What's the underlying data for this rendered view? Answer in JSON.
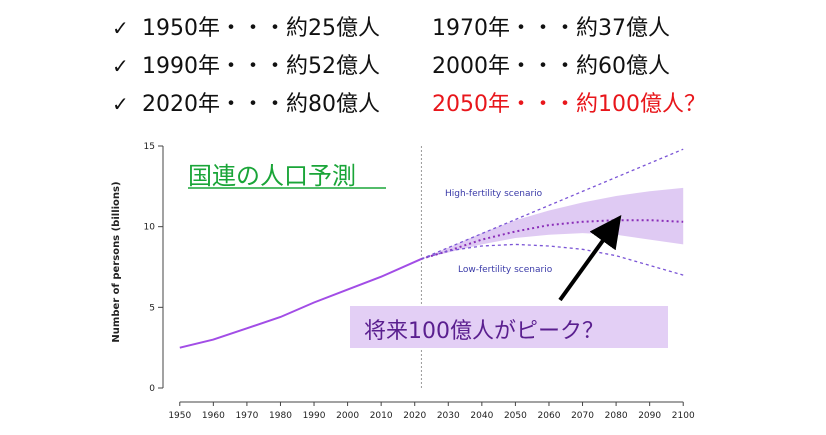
{
  "facts": [
    {
      "check": "✓",
      "text": "1950年・・・約25億人"
    },
    {
      "check": "",
      "text": "1970年・・・約37億人"
    },
    {
      "check": "✓",
      "text": "1990年・・・約52億人"
    },
    {
      "check": "",
      "text": "2000年・・・約60億人"
    },
    {
      "check": "✓",
      "text": "2020年・・・約80億人"
    },
    {
      "check": "",
      "text": "2050年・・・約100億人？"
    }
  ],
  "colors": {
    "projection": "#7b55d6",
    "median": "#8a2eb8",
    "band": "#dcc4f2",
    "history": "#a24de6",
    "highlight": "#e8161b",
    "title": "#1aa538"
  },
  "chart_data": {
    "type": "line",
    "title": "国連の人口予測",
    "ylabel": "Number of persons (billions)",
    "xlabel": "",
    "xlim": [
      1945,
      2105
    ],
    "ylim": [
      0,
      15
    ],
    "x_ticks": [
      1950,
      1960,
      1970,
      1980,
      1990,
      2000,
      2010,
      2020,
      2030,
      2040,
      2050,
      2060,
      2070,
      2080,
      2090,
      2100
    ],
    "y_ticks": [
      0,
      5,
      10,
      15
    ],
    "annotations": {
      "high": "High-fertility scenario",
      "low": "Low-fertility scenario",
      "callout": "将来100億人がピーク？"
    },
    "series": [
      {
        "x": [
          1950,
          1960,
          1970,
          1980,
          1990,
          2000,
          2010,
          2022
        ],
        "values": [
          2.5,
          3.0,
          3.7,
          4.4,
          5.3,
          6.1,
          6.9,
          8.0
        ]
      },
      {
        "x": [
          2022,
          2030,
          2040,
          2050,
          2060,
          2070,
          2080,
          2090,
          2100
        ],
        "values": [
          8.0,
          8.5,
          9.2,
          9.7,
          10.1,
          10.3,
          10.4,
          10.4,
          10.3
        ]
      },
      {
        "x": [
          2022,
          2100
        ],
        "values": [
          8.0,
          14.8
        ]
      },
      {
        "x": [
          2022,
          2030,
          2040,
          2050,
          2060,
          2070,
          2080,
          2090,
          2100
        ],
        "values": [
          8.0,
          8.5,
          8.8,
          8.9,
          8.8,
          8.6,
          8.2,
          7.6,
          7.0
        ]
      }
    ],
    "band": {
      "x": [
        2022,
        2030,
        2040,
        2050,
        2060,
        2070,
        2080,
        2090,
        2100
      ],
      "upper": [
        8.0,
        8.7,
        9.6,
        10.4,
        11.0,
        11.5,
        11.9,
        12.2,
        12.4
      ],
      "lower": [
        8.0,
        8.4,
        8.9,
        9.3,
        9.5,
        9.6,
        9.5,
        9.2,
        8.9
      ]
    }
  }
}
